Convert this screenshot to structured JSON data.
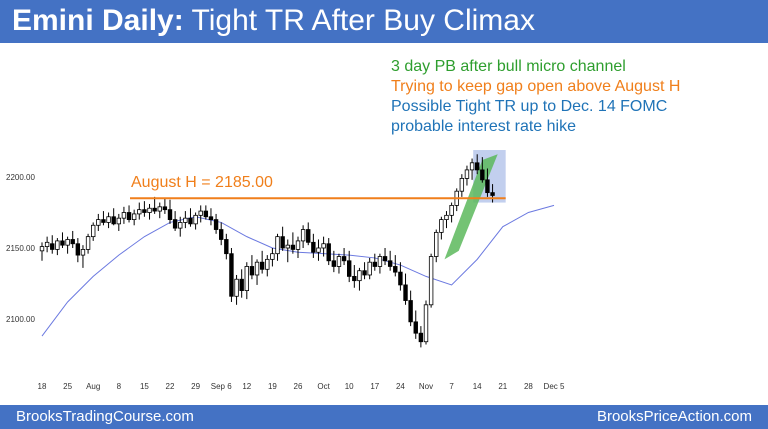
{
  "header": {
    "title_bold": "Emini Daily:",
    "title_rest": "Tight TR After Buy Climax"
  },
  "notes": [
    {
      "text": "3 day PB after bull micro channel",
      "color": "#2e9e2e"
    },
    {
      "text": "Trying to keep gap open above August H",
      "color": "#f07f1b"
    },
    {
      "text": "Possible Tight TR up to Dec. 14 FOMC",
      "color": "#1f73b7"
    },
    {
      "text": "probable interest rate hike",
      "color": "#1f73b7"
    }
  ],
  "annotations": {
    "august_high_label": "August H = 2185.00",
    "august_high_value": 2185.0,
    "august_high_color": "#f07f1b"
  },
  "footer": {
    "left": "BrooksTradingCourse.com",
    "right": "BrooksPriceAction.com"
  },
  "colors": {
    "banner": "#4472c4",
    "bull_channel": "#5cb85c",
    "tight_range_box": "#8fa7e0",
    "moving_average": "#6b79e0"
  },
  "chart_data": {
    "type": "candlestick",
    "title": "",
    "ylim": [
      2080,
      2225
    ],
    "y_ticks": [
      "2100.00",
      "2150.00",
      "2200.00"
    ],
    "y_tick_values": [
      2100,
      2150,
      2200
    ],
    "x_ticks": [
      {
        "label": "18",
        "index": 0
      },
      {
        "label": "25",
        "index": 5
      },
      {
        "label": "Aug",
        "index": 10
      },
      {
        "label": "8",
        "index": 15
      },
      {
        "label": "15",
        "index": 20
      },
      {
        "label": "22",
        "index": 25
      },
      {
        "label": "29",
        "index": 30
      },
      {
        "label": "Sep 6",
        "index": 35
      },
      {
        "label": "12",
        "index": 40
      },
      {
        "label": "19",
        "index": 45
      },
      {
        "label": "26",
        "index": 50
      },
      {
        "label": "Oct",
        "index": 55
      },
      {
        "label": "10",
        "index": 60
      },
      {
        "label": "17",
        "index": 65
      },
      {
        "label": "24",
        "index": 70
      },
      {
        "label": "Nov",
        "index": 75
      },
      {
        "label": "7",
        "index": 80
      },
      {
        "label": "14",
        "index": 85
      },
      {
        "label": "21",
        "index": 90
      },
      {
        "label": "28",
        "index": 95
      },
      {
        "label": "Dec 5",
        "index": 100
      }
    ],
    "ohlc": [
      [
        2148,
        2154,
        2141,
        2151
      ],
      [
        2151,
        2158,
        2147,
        2154
      ],
      [
        2153,
        2159,
        2146,
        2149
      ],
      [
        2149,
        2157,
        2145,
        2155
      ],
      [
        2155,
        2161,
        2150,
        2152
      ],
      [
        2152,
        2158,
        2146,
        2156
      ],
      [
        2156,
        2162,
        2150,
        2153
      ],
      [
        2153,
        2157,
        2140,
        2145
      ],
      [
        2145,
        2152,
        2136,
        2149
      ],
      [
        2149,
        2160,
        2146,
        2158
      ],
      [
        2158,
        2168,
        2155,
        2166
      ],
      [
        2166,
        2174,
        2162,
        2170
      ],
      [
        2170,
        2176,
        2166,
        2168
      ],
      [
        2168,
        2175,
        2164,
        2172
      ],
      [
        2172,
        2178,
        2166,
        2167
      ],
      [
        2167,
        2174,
        2162,
        2171
      ],
      [
        2171,
        2179,
        2167,
        2175
      ],
      [
        2175,
        2180,
        2168,
        2170
      ],
      [
        2170,
        2177,
        2166,
        2174
      ],
      [
        2174,
        2182,
        2170,
        2177
      ],
      [
        2177,
        2183,
        2172,
        2175
      ],
      [
        2175,
        2181,
        2170,
        2178
      ],
      [
        2178,
        2186,
        2174,
        2176
      ],
      [
        2176,
        2182,
        2171,
        2179
      ],
      [
        2179,
        2185,
        2174,
        2177
      ],
      [
        2177,
        2184,
        2167,
        2170
      ],
      [
        2170,
        2176,
        2162,
        2164
      ],
      [
        2164,
        2172,
        2158,
        2168
      ],
      [
        2168,
        2176,
        2164,
        2171
      ],
      [
        2171,
        2178,
        2165,
        2167
      ],
      [
        2167,
        2175,
        2163,
        2173
      ],
      [
        2173,
        2180,
        2168,
        2176
      ],
      [
        2176,
        2180,
        2170,
        2172
      ],
      [
        2172,
        2178,
        2166,
        2170
      ],
      [
        2170,
        2174,
        2160,
        2163
      ],
      [
        2163,
        2168,
        2152,
        2156
      ],
      [
        2156,
        2160,
        2142,
        2146
      ],
      [
        2146,
        2150,
        2112,
        2116
      ],
      [
        2116,
        2131,
        2110,
        2128
      ],
      [
        2128,
        2135,
        2115,
        2120
      ],
      [
        2120,
        2140,
        2114,
        2137
      ],
      [
        2137,
        2145,
        2128,
        2131
      ],
      [
        2131,
        2142,
        2124,
        2140
      ],
      [
        2140,
        2148,
        2132,
        2135
      ],
      [
        2135,
        2145,
        2130,
        2142
      ],
      [
        2142,
        2150,
        2137,
        2146
      ],
      [
        2146,
        2160,
        2141,
        2158
      ],
      [
        2158,
        2165,
        2148,
        2150
      ],
      [
        2150,
        2156,
        2140,
        2152
      ],
      [
        2152,
        2161,
        2146,
        2149
      ],
      [
        2149,
        2158,
        2143,
        2155
      ],
      [
        2155,
        2166,
        2150,
        2163
      ],
      [
        2163,
        2168,
        2152,
        2154
      ],
      [
        2154,
        2160,
        2143,
        2147
      ],
      [
        2147,
        2156,
        2141,
        2150
      ],
      [
        2150,
        2158,
        2144,
        2153
      ],
      [
        2153,
        2157,
        2138,
        2141
      ],
      [
        2141,
        2148,
        2133,
        2137
      ],
      [
        2137,
        2146,
        2132,
        2144
      ],
      [
        2144,
        2150,
        2138,
        2141
      ],
      [
        2141,
        2148,
        2126,
        2130
      ],
      [
        2130,
        2138,
        2122,
        2127
      ],
      [
        2127,
        2136,
        2120,
        2134
      ],
      [
        2134,
        2140,
        2128,
        2131
      ],
      [
        2131,
        2143,
        2128,
        2140
      ],
      [
        2140,
        2146,
        2134,
        2137
      ],
      [
        2137,
        2146,
        2132,
        2144
      ],
      [
        2144,
        2150,
        2138,
        2141
      ],
      [
        2141,
        2148,
        2134,
        2137
      ],
      [
        2137,
        2145,
        2130,
        2133
      ],
      [
        2133,
        2140,
        2120,
        2124
      ],
      [
        2124,
        2132,
        2110,
        2113
      ],
      [
        2113,
        2120,
        2095,
        2098
      ],
      [
        2098,
        2106,
        2086,
        2090
      ],
      [
        2090,
        2095,
        2080,
        2084
      ],
      [
        2084,
        2113,
        2082,
        2110
      ],
      [
        2110,
        2146,
        2108,
        2144
      ],
      [
        2144,
        2163,
        2140,
        2161
      ],
      [
        2161,
        2172,
        2156,
        2170
      ],
      [
        2170,
        2176,
        2164,
        2173
      ],
      [
        2173,
        2182,
        2168,
        2180
      ],
      [
        2180,
        2192,
        2176,
        2190
      ],
      [
        2190,
        2202,
        2186,
        2199
      ],
      [
        2199,
        2208,
        2194,
        2205
      ],
      [
        2205,
        2213,
        2198,
        2210
      ],
      [
        2210,
        2216,
        2202,
        2205
      ],
      [
        2205,
        2214,
        2196,
        2198
      ],
      [
        2198,
        2206,
        2186,
        2189
      ],
      [
        2189,
        2195,
        2182,
        2187
      ]
    ],
    "ohlc_x_indices": [
      0,
      1,
      2,
      3,
      4,
      5,
      6,
      7,
      8,
      9,
      10,
      11,
      12,
      13,
      14,
      15,
      16,
      17,
      18,
      19,
      20,
      21,
      22,
      23,
      24,
      25,
      26,
      27,
      28,
      29,
      30,
      31,
      32,
      33,
      34,
      35,
      36,
      37,
      38,
      39,
      40,
      41,
      42,
      43,
      44,
      45,
      46,
      47,
      48,
      49,
      50,
      51,
      52,
      53,
      54,
      55,
      56,
      57,
      58,
      59,
      60,
      61,
      62,
      63,
      64,
      65,
      66,
      67,
      68,
      69,
      70,
      71,
      72,
      73,
      74,
      75,
      76,
      77,
      78,
      79,
      80,
      81,
      82,
      83,
      84,
      85,
      86,
      87,
      88,
      89
    ],
    "moving_average": [
      [
        0,
        2088
      ],
      [
        5,
        2112
      ],
      [
        10,
        2130
      ],
      [
        15,
        2145
      ],
      [
        20,
        2158
      ],
      [
        25,
        2168
      ],
      [
        30,
        2172
      ],
      [
        35,
        2168
      ],
      [
        40,
        2158
      ],
      [
        45,
        2150
      ],
      [
        50,
        2147
      ],
      [
        55,
        2146
      ],
      [
        60,
        2145
      ],
      [
        65,
        2143
      ],
      [
        70,
        2138
      ],
      [
        75,
        2130
      ],
      [
        80,
        2124
      ],
      [
        85,
        2142
      ],
      [
        90,
        2165
      ],
      [
        95,
        2175
      ],
      [
        100,
        2180
      ]
    ]
  }
}
